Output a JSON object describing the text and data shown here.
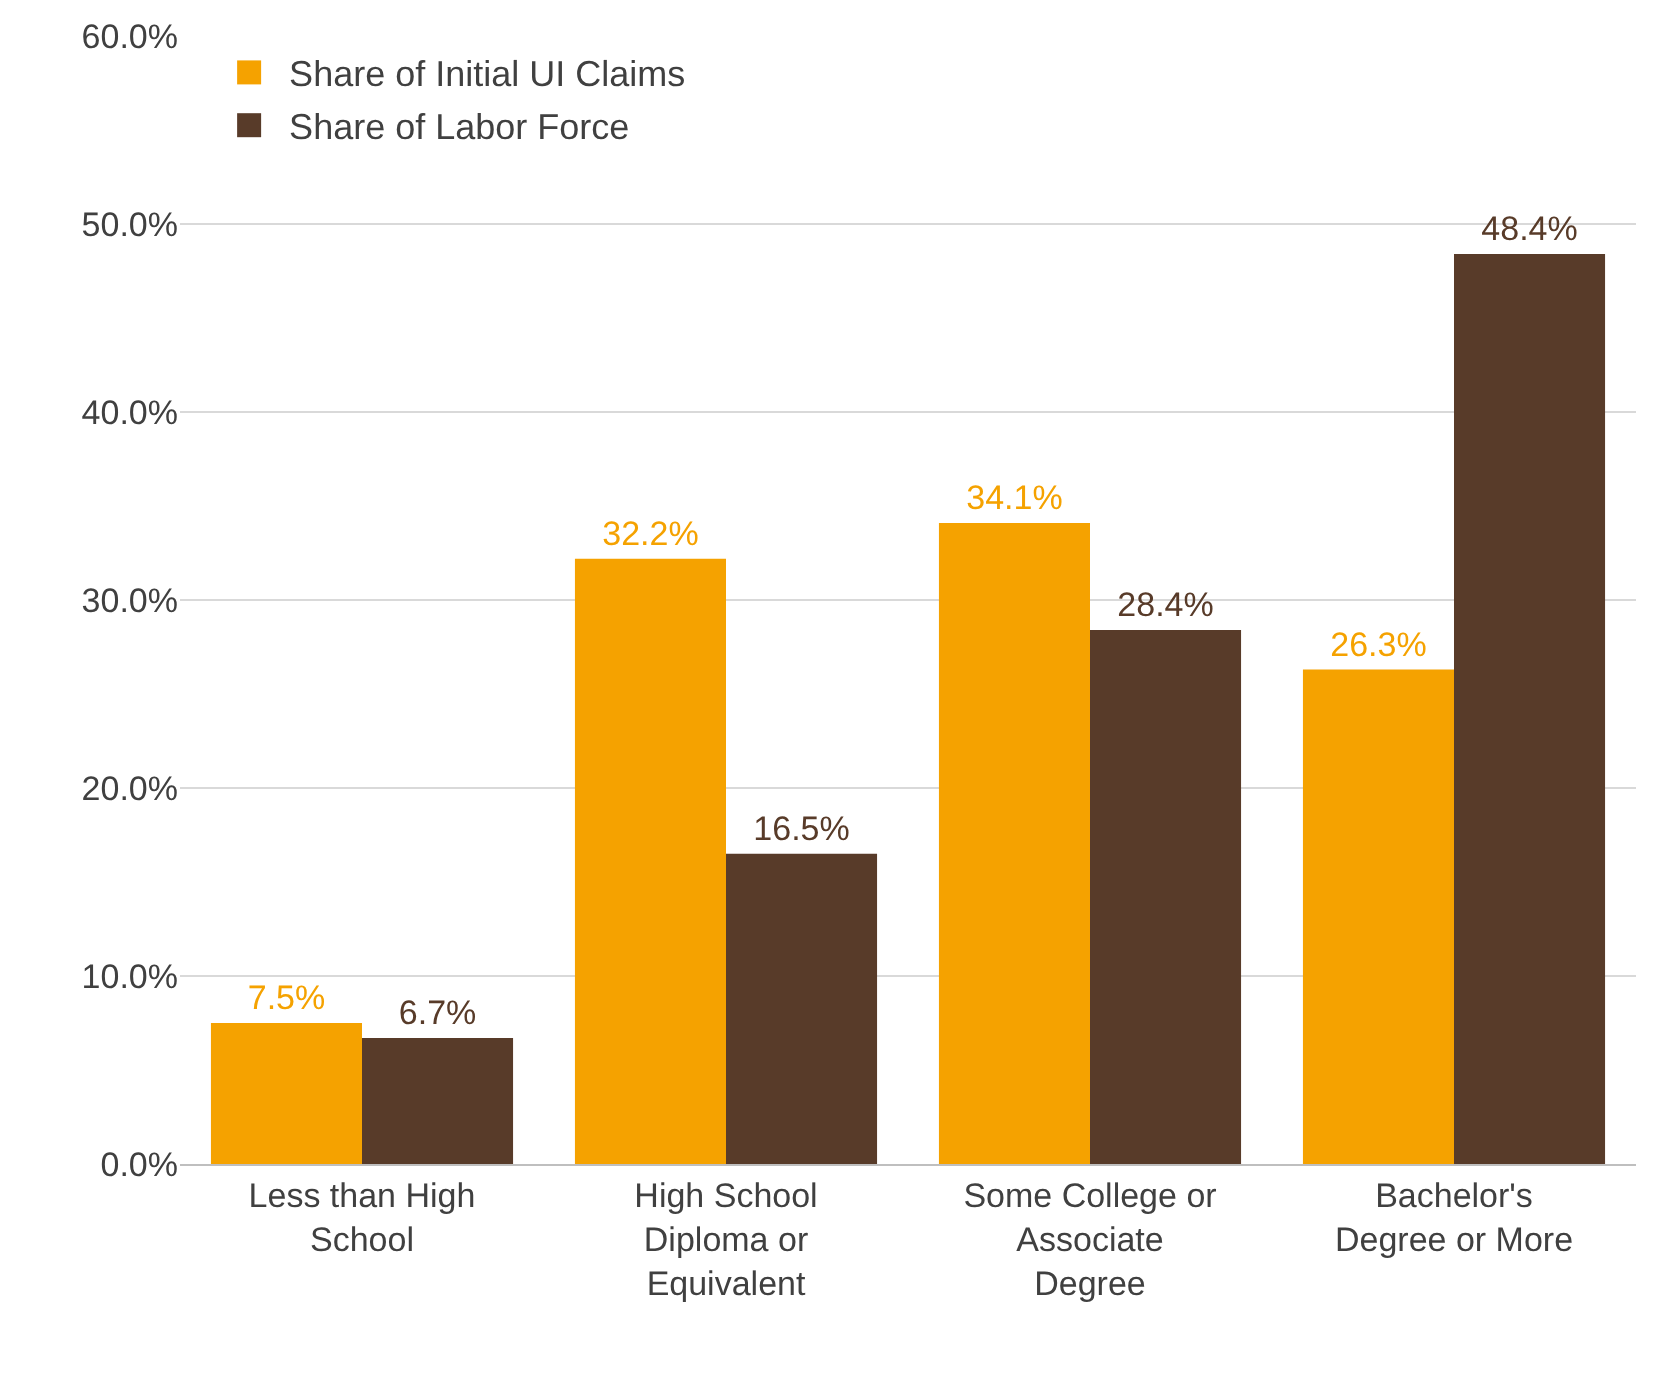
{
  "chart_data": {
    "type": "bar",
    "categories": [
      "Less than High School",
      "High School Diploma or Equivalent",
      "Some College or Associate Degree",
      "Bachelor's Degree or More"
    ],
    "series": [
      {
        "name": "Share of Initial UI Claims",
        "color": "#f5a200",
        "values": [
          7.5,
          32.2,
          34.1,
          26.3
        ],
        "value_labels": [
          "7.5%",
          "32.2%",
          "34.1%",
          "26.3%"
        ]
      },
      {
        "name": "Share of Labor Force",
        "color": "#583b29",
        "values": [
          6.7,
          16.5,
          28.4,
          48.4
        ],
        "value_labels": [
          "6.7%",
          "16.5%",
          "28.4%",
          "48.4%"
        ]
      }
    ],
    "ylim": [
      0,
      60
    ],
    "yticks": [
      {
        "value": 0,
        "label": "0.0%"
      },
      {
        "value": 10,
        "label": "10.0%"
      },
      {
        "value": 20,
        "label": "20.0%"
      },
      {
        "value": 30,
        "label": "30.0%"
      },
      {
        "value": 40,
        "label": "40.0%"
      },
      {
        "value": 50,
        "label": "50.0%"
      },
      {
        "value": 60,
        "label": "60.0%"
      }
    ],
    "grid": "y",
    "legend": "top left"
  }
}
